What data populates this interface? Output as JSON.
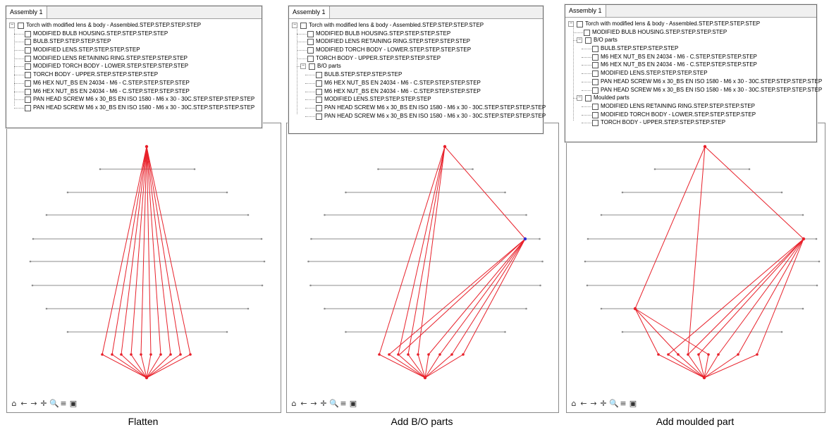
{
  "tab_label": "Assembly 1",
  "root_label": "Torch with modified lens & body - Assembled.STEP.STEP.STEP.STEP",
  "toolbar_icons": [
    "home-icon",
    "back-arrow-icon",
    "forward-arrow-icon",
    "pan-icon",
    "zoom-icon",
    "configure-icon",
    "save-icon"
  ],
  "toolbar_glyphs": [
    "⌂",
    "←",
    "→",
    "✛",
    "🔍",
    "≡",
    "▣"
  ],
  "colors": {
    "edge": "#e8202a",
    "node": "#e8202a",
    "level": "#8c8c8c",
    "highlight": "#2a2ad8"
  },
  "panels": [
    {
      "caption": "Flatten",
      "items": [
        {
          "label": "MODIFIED BULB HOUSING.STEP.STEP.STEP.STEP",
          "depth": 1
        },
        {
          "label": "BULB.STEP.STEP.STEP.STEP",
          "depth": 1
        },
        {
          "label": "MODIFIED LENS.STEP.STEP.STEP.STEP",
          "depth": 1
        },
        {
          "label": "MODIFIED LENS RETAINING RING.STEP.STEP.STEP.STEP",
          "depth": 1
        },
        {
          "label": "MODIFIED TORCH BODY - LOWER.STEP.STEP.STEP.STEP",
          "depth": 1
        },
        {
          "label": "TORCH BODY - UPPER.STEP.STEP.STEP.STEP",
          "depth": 1
        },
        {
          "label": "M6 HEX NUT_BS EN 24034 - M6 - C.STEP.STEP.STEP.STEP",
          "depth": 1
        },
        {
          "label": "M6 HEX NUT_BS EN 24034 - M6 - C.STEP.STEP.STEP.STEP",
          "depth": 1
        },
        {
          "label": "PAN HEAD SCREW M6 x 30_BS EN ISO 1580 - M6 x 30 - 30C.STEP.STEP.STEP.STEP",
          "depth": 1
        },
        {
          "label": "PAN HEAD SCREW M6 x 30_BS EN ISO 1580 - M6 x 30 - 30C.STEP.STEP.STEP.STEP",
          "depth": 1
        }
      ]
    },
    {
      "caption": "Add B/O parts",
      "items": [
        {
          "label": "MODIFIED BULB HOUSING.STEP.STEP.STEP.STEP",
          "depth": 1
        },
        {
          "label": "MODIFIED LENS RETAINING RING.STEP.STEP.STEP.STEP",
          "depth": 1
        },
        {
          "label": "MODIFIED TORCH BODY - LOWER.STEP.STEP.STEP.STEP",
          "depth": 1
        },
        {
          "label": "TORCH BODY - UPPER.STEP.STEP.STEP.STEP",
          "depth": 1
        },
        {
          "label": "B/O parts",
          "depth": 1,
          "group": true
        },
        {
          "label": "BULB.STEP.STEP.STEP.STEP",
          "depth": 2
        },
        {
          "label": "M6 HEX NUT_BS EN 24034 - M6 - C.STEP.STEP.STEP.STEP",
          "depth": 2
        },
        {
          "label": "M6 HEX NUT_BS EN 24034 - M6 - C.STEP.STEP.STEP.STEP",
          "depth": 2
        },
        {
          "label": "MODIFIED LENS.STEP.STEP.STEP.STEP",
          "depth": 2
        },
        {
          "label": "PAN HEAD SCREW M6 x 30_BS EN ISO 1580 - M6 x 30 - 30C.STEP.STEP.STEP.STEP",
          "depth": 2
        },
        {
          "label": "PAN HEAD SCREW M6 x 30_BS EN ISO 1580 - M6 x 30 - 30C.STEP.STEP.STEP.STEP",
          "depth": 2
        }
      ]
    },
    {
      "caption": "Add moulded part",
      "items": [
        {
          "label": "MODIFIED BULB HOUSING.STEP.STEP.STEP.STEP",
          "depth": 1
        },
        {
          "label": "B/O parts",
          "depth": 1,
          "group": true
        },
        {
          "label": "BULB.STEP.STEP.STEP.STEP",
          "depth": 2
        },
        {
          "label": "M6 HEX NUT_BS EN 24034 - M6 - C.STEP.STEP.STEP.STEP",
          "depth": 2
        },
        {
          "label": "M6 HEX NUT_BS EN 24034 - M6 - C.STEP.STEP.STEP.STEP",
          "depth": 2
        },
        {
          "label": "MODIFIED LENS.STEP.STEP.STEP.STEP",
          "depth": 2
        },
        {
          "label": "PAN HEAD SCREW M6 x 30_BS EN ISO 1580 - M6 x 30 - 30C.STEP.STEP.STEP.STEP",
          "depth": 2
        },
        {
          "label": "PAN HEAD SCREW M6 x 30_BS EN ISO 1580 - M6 x 30 - 30C.STEP.STEP.STEP.STEP",
          "depth": 2
        },
        {
          "label": "Moulded parts",
          "depth": 1,
          "group": true
        },
        {
          "label": "MODIFIED LENS RETAINING RING.STEP.STEP.STEP.STEP",
          "depth": 2
        },
        {
          "label": "MODIFIED TORCH BODY - LOWER.STEP.STEP.STEP.STEP",
          "depth": 2
        },
        {
          "label": "TORCH BODY - UPPER.STEP.STEP.STEP.STEP",
          "depth": 2
        }
      ]
    }
  ]
}
